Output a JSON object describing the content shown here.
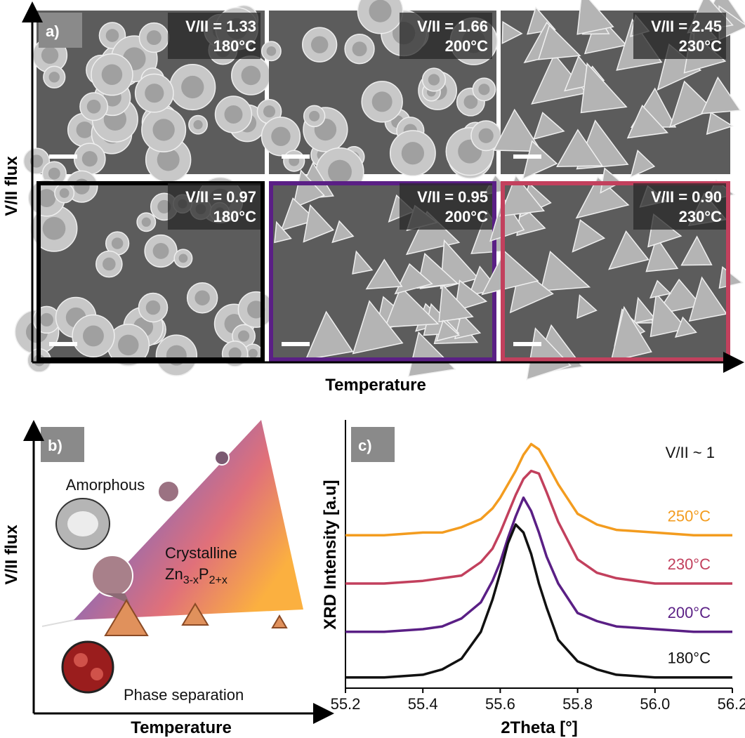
{
  "panel_a": {
    "label": "a)",
    "y_axis_label": "V/II flux",
    "x_axis_label": "Temperature",
    "images": [
      {
        "ratio": "V/II = 1.33",
        "temp": "180°C"
      },
      {
        "ratio": "V/II = 1.66",
        "temp": "200°C"
      },
      {
        "ratio": "V/II = 2.45",
        "temp": "230°C"
      },
      {
        "ratio": "V/II = 0.97",
        "temp": "180°C"
      },
      {
        "ratio": "V/II = 0.95",
        "temp": "200°C"
      },
      {
        "ratio": "V/II = 0.90",
        "temp": "230°C"
      }
    ]
  },
  "panel_b": {
    "label": "b)",
    "y_axis_label": "V/II flux",
    "x_axis_label": "Temperature",
    "amorphous": "Amorphous",
    "crystalline": "Crystalline",
    "formula": [
      "Zn",
      "3-x",
      "P",
      "2+x"
    ],
    "phase_separation": "Phase separation"
  },
  "chart_data": {
    "type": "line",
    "label": "c)",
    "annotation": "V/II ~ 1",
    "x_label": "2Theta [°]",
    "y_label": "XRD Intensity [a.u]",
    "x": [
      55.2,
      55.3,
      55.4,
      55.45,
      55.5,
      55.55,
      55.58,
      55.6,
      55.62,
      55.64,
      55.66,
      55.68,
      55.7,
      55.72,
      55.75,
      55.8,
      55.85,
      55.9,
      56.0,
      56.1,
      56.2
    ],
    "xlim": [
      55.2,
      56.2
    ],
    "xticks": [
      {
        "value": 55.2,
        "label": "55.2"
      },
      {
        "value": 55.4,
        "label": "55.4"
      },
      {
        "value": 55.6,
        "label": "55.6"
      },
      {
        "value": 55.8,
        "label": "55.8"
      },
      {
        "value": 56.0,
        "label": "56.0"
      },
      {
        "value": 56.2,
        "label": "56.2"
      }
    ],
    "ylim": [
      0,
      100
    ],
    "series": [
      {
        "name": "250°C",
        "color": "#f39c1f",
        "values": [
          57,
          57,
          58,
          58,
          60,
          63,
          67,
          71,
          76,
          81,
          87,
          91,
          89,
          84,
          76,
          65,
          61,
          59,
          58,
          57,
          57
        ]
      },
      {
        "name": "230°C",
        "color": "#c2405d",
        "values": [
          39,
          39,
          40,
          41,
          42,
          47,
          52,
          58,
          65,
          72,
          78,
          81,
          80,
          73,
          62,
          48,
          43,
          41,
          39,
          39,
          39
        ]
      },
      {
        "name": "200°C",
        "color": "#5a1f85",
        "values": [
          21,
          21,
          22,
          23,
          26,
          32,
          40,
          47,
          56,
          64,
          71,
          66,
          58,
          49,
          39,
          28,
          25,
          23,
          22,
          21,
          21
        ]
      },
      {
        "name": "180°C",
        "color": "#111111",
        "values": [
          4,
          4,
          5,
          7,
          11,
          21,
          33,
          43,
          54,
          61,
          58,
          50,
          39,
          30,
          18,
          10,
          7,
          5,
          4,
          4,
          4
        ]
      }
    ]
  }
}
